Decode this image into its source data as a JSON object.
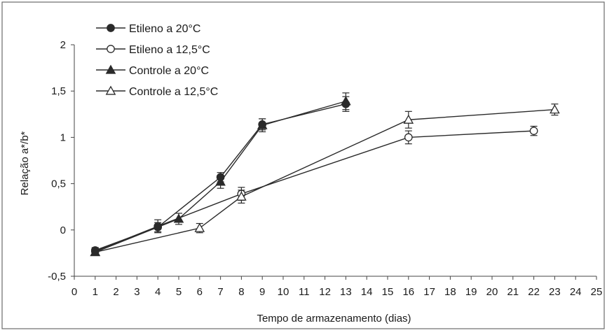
{
  "chart_data": {
    "type": "line",
    "title": "",
    "xlabel": "Tempo de armazenamento (dias)",
    "ylabel": "Relação a*/b*",
    "xlim": [
      0,
      25
    ],
    "ylim": [
      -0.5,
      2
    ],
    "x_ticks": [
      0,
      1,
      2,
      3,
      4,
      5,
      6,
      7,
      8,
      9,
      10,
      11,
      12,
      13,
      14,
      15,
      16,
      17,
      18,
      19,
      20,
      21,
      22,
      23,
      24,
      25
    ],
    "y_ticks": [
      -0.5,
      0,
      0.5,
      1,
      1.5,
      2
    ],
    "y_tick_labels": [
      "-0,5",
      "0",
      "0,5",
      "1",
      "1,5",
      "2"
    ],
    "grid": false,
    "legend_position": "top-left",
    "colors": {
      "line": "#2a2a2a",
      "frame": "#555555",
      "background": "#ffffff"
    },
    "series": [
      {
        "name": "Etileno a 20°C",
        "marker": "filled-circle",
        "x": [
          1,
          4,
          7,
          9,
          13
        ],
        "y": [
          -0.22,
          0.03,
          0.57,
          1.14,
          1.36
        ],
        "error": [
          0.03,
          0.05,
          0.05,
          0.06,
          0.08
        ]
      },
      {
        "name": "Etileno a 12,5°C",
        "marker": "open-circle",
        "x": [
          1,
          4,
          8,
          16,
          22
        ],
        "y": [
          -0.23,
          0.04,
          0.39,
          1.0,
          1.07
        ],
        "error": [
          0.03,
          0.07,
          0.07,
          0.07,
          0.05
        ]
      },
      {
        "name": "Controle a 20°C",
        "marker": "filled-triangle",
        "x": [
          1,
          5,
          7,
          9,
          13
        ],
        "y": [
          -0.24,
          0.12,
          0.52,
          1.13,
          1.39
        ],
        "error": [
          0.03,
          0.06,
          0.07,
          0.07,
          0.09
        ]
      },
      {
        "name": "Controle a 12,5°C",
        "marker": "open-triangle",
        "x": [
          1,
          6,
          8,
          16,
          23
        ],
        "y": [
          -0.24,
          0.02,
          0.36,
          1.19,
          1.3
        ],
        "error": [
          0.03,
          0.05,
          0.07,
          0.09,
          0.06
        ]
      }
    ]
  }
}
